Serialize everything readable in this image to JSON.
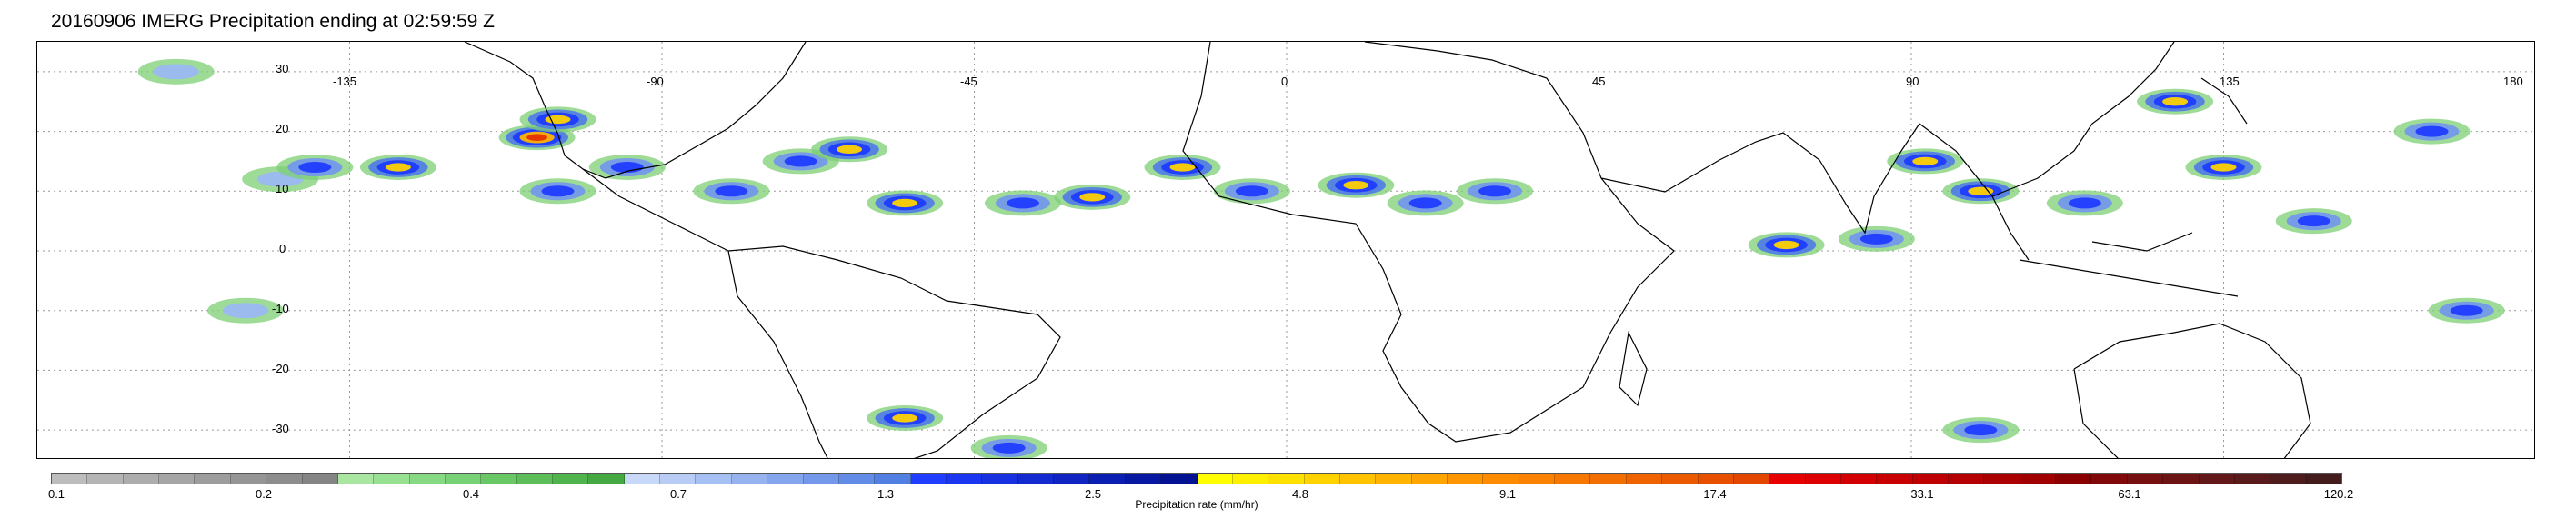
{
  "title": "20160906 IMERG Precipitation ending at 02:59:59 Z",
  "map": {
    "lat_labels": [
      "30",
      "20",
      "10",
      "0",
      "-10",
      "-20",
      "-30"
    ],
    "lat_values": [
      30,
      20,
      10,
      0,
      -10,
      -20,
      -30
    ],
    "lon_labels": [
      "-135",
      "-90",
      "-45",
      "0",
      "45",
      "90",
      "135",
      "180"
    ],
    "lon_values": [
      -135,
      -90,
      -45,
      0,
      45,
      90,
      135,
      180
    ],
    "lat_range": [
      -35,
      35
    ],
    "lon_range": [
      -180,
      180
    ],
    "grid": "dotted",
    "coastline_color": "#000000"
  },
  "colorbar": {
    "tick_labels": [
      "0.1",
      "0.2",
      "0.4",
      "0.7",
      "1.3",
      "2.5",
      "4.8",
      "9.1",
      "17.4",
      "33.1",
      "63.1",
      "120.2"
    ],
    "label": "Precipitation rate (mm/hr)",
    "colors": [
      "#bdbdbd",
      "#b5b5b5",
      "#adadad",
      "#a5a5a5",
      "#9d9d9d",
      "#959595",
      "#8d8d8d",
      "#858585",
      "#a8e6a1",
      "#98e092",
      "#88d983",
      "#78d174",
      "#6ac766",
      "#5dbd59",
      "#51b34d",
      "#46a843",
      "#c8d8f8",
      "#b8ccf6",
      "#a7c0f3",
      "#96b3f0",
      "#85a6ed",
      "#7499ea",
      "#638ce6",
      "#527fe2",
      "#1f3cff",
      "#1b36f0",
      "#1730e0",
      "#132ad1",
      "#0f24c1",
      "#0b1eb2",
      "#0718a2",
      "#031293",
      "#ffff00",
      "#fff000",
      "#ffe100",
      "#ffd200",
      "#ffc300",
      "#ffb400",
      "#ffa500",
      "#ff9600",
      "#ff8c00",
      "#fb8200",
      "#f77800",
      "#f36e00",
      "#ef6400",
      "#eb5a00",
      "#e75000",
      "#e34600",
      "#e60000",
      "#dc0000",
      "#d20000",
      "#c80000",
      "#be0000",
      "#b40000",
      "#aa0000",
      "#a00000",
      "#8a0000",
      "#800808",
      "#761010",
      "#6c1414",
      "#621818",
      "#581a1a",
      "#4e1c1c",
      "#441c1c"
    ]
  },
  "precip_cells": [
    {
      "lon": -145,
      "lat": 12,
      "intensity": 2
    },
    {
      "lon": -140,
      "lat": 14,
      "intensity": 3
    },
    {
      "lon": -128,
      "lat": 14,
      "intensity": 4
    },
    {
      "lon": -108,
      "lat": 19,
      "intensity": 5
    },
    {
      "lon": -105,
      "lat": 22,
      "intensity": 4
    },
    {
      "lon": -105,
      "lat": 10,
      "intensity": 3
    },
    {
      "lon": -95,
      "lat": 14,
      "intensity": 3
    },
    {
      "lon": -80,
      "lat": 10,
      "intensity": 3
    },
    {
      "lon": -70,
      "lat": 15,
      "intensity": 3
    },
    {
      "lon": -63,
      "lat": 17,
      "intensity": 4
    },
    {
      "lon": -55,
      "lat": 8,
      "intensity": 4
    },
    {
      "lon": -38,
      "lat": 8,
      "intensity": 3
    },
    {
      "lon": -28,
      "lat": 9,
      "intensity": 4
    },
    {
      "lon": -15,
      "lat": 14,
      "intensity": 4
    },
    {
      "lon": -5,
      "lat": 10,
      "intensity": 3
    },
    {
      "lon": 10,
      "lat": 11,
      "intensity": 4
    },
    {
      "lon": 20,
      "lat": 8,
      "intensity": 3
    },
    {
      "lon": 30,
      "lat": 10,
      "intensity": 3
    },
    {
      "lon": 72,
      "lat": 1,
      "intensity": 4
    },
    {
      "lon": 85,
      "lat": 2,
      "intensity": 3
    },
    {
      "lon": 92,
      "lat": 15,
      "intensity": 4
    },
    {
      "lon": 100,
      "lat": 10,
      "intensity": 4
    },
    {
      "lon": 115,
      "lat": 8,
      "intensity": 3
    },
    {
      "lon": 128,
      "lat": 25,
      "intensity": 4
    },
    {
      "lon": 135,
      "lat": 14,
      "intensity": 4
    },
    {
      "lon": 148,
      "lat": 5,
      "intensity": 3
    },
    {
      "lon": 165,
      "lat": 20,
      "intensity": 3
    },
    {
      "lon": 170,
      "lat": -10,
      "intensity": 3
    },
    {
      "lon": -55,
      "lat": -28,
      "intensity": 4
    },
    {
      "lon": -40,
      "lat": -33,
      "intensity": 3
    },
    {
      "lon": 100,
      "lat": -30,
      "intensity": 3
    },
    {
      "lon": -150,
      "lat": -10,
      "intensity": 2
    },
    {
      "lon": -160,
      "lat": 30,
      "intensity": 2
    }
  ]
}
